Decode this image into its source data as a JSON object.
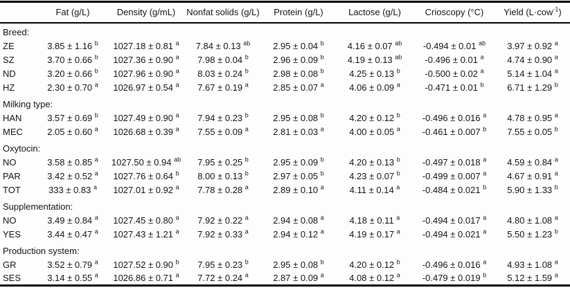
{
  "colors": {
    "background": "#fdfdfd",
    "text": "#141414",
    "rule": "#000000"
  },
  "table": {
    "headers": [
      {
        "label": "Fat (g/L)"
      },
      {
        "label": "Density (g/mL)"
      },
      {
        "label": "Nonfat solids (g/L)"
      },
      {
        "label": "Protein (g/L)"
      },
      {
        "label": "Lactose (g/L)"
      },
      {
        "label": "Crioscopy (°C)"
      },
      {
        "label": "Yield (L·cow",
        "sup": "-1",
        "after": ")"
      }
    ],
    "groups": [
      {
        "label": "Breed:",
        "rows": [
          {
            "name": "ZE",
            "cells": [
              {
                "v": "3.85 ± 1.16",
                "s": "b"
              },
              {
                "v": "1027.18 ± 0.81",
                "s": "a"
              },
              {
                "v": "7.84 ± 0.13",
                "s": "ab"
              },
              {
                "v": "2.95 ± 0.04",
                "s": "b"
              },
              {
                "v": "4.16 ± 0.07",
                "s": "ab"
              },
              {
                "v": "-0.494 ± 0.01",
                "s": "ab"
              },
              {
                "v": "3.97 ± 0.92",
                "s": "a"
              }
            ]
          },
          {
            "name": "SZ",
            "cells": [
              {
                "v": "3.70 ± 0.66",
                "s": "b"
              },
              {
                "v": "1027.36 ± 0.90",
                "s": "a"
              },
              {
                "v": "7.98 ± 0.04",
                "s": "b"
              },
              {
                "v": "2.96 ± 0.09",
                "s": "b"
              },
              {
                "v": "4.19 ± 0.13",
                "s": "ab"
              },
              {
                "v": "-0.496 ± 0.01",
                "s": "a"
              },
              {
                "v": "4.74 ± 0.90",
                "s": "a"
              }
            ]
          },
          {
            "name": "ND",
            "cells": [
              {
                "v": "3.20 ± 0.66",
                "s": "b"
              },
              {
                "v": "1027.96 ± 0.90",
                "s": "a"
              },
              {
                "v": "8.03 ± 0.24",
                "s": "b"
              },
              {
                "v": "2.98 ± 0.08",
                "s": "b"
              },
              {
                "v": "4.25 ± 0.13",
                "s": "b"
              },
              {
                "v": "-0.500 ± 0.02",
                "s": "a"
              },
              {
                "v": "5.14 ± 1.04",
                "s": "a"
              }
            ]
          },
          {
            "name": "HZ",
            "cells": [
              {
                "v": "2.30 ± 0.70",
                "s": "a"
              },
              {
                "v": "1026.97 ± 0.54",
                "s": "a"
              },
              {
                "v": "7.67 ± 0.19",
                "s": "a"
              },
              {
                "v": "2.85 ± 0.07",
                "s": "a"
              },
              {
                "v": "4.06 ± 0.09",
                "s": "a"
              },
              {
                "v": "-0.471 ± 0.01",
                "s": "b"
              },
              {
                "v": "6.71 ± 1.29",
                "s": "b"
              }
            ]
          }
        ]
      },
      {
        "label": "Milking type:",
        "rows": [
          {
            "name": "HAN",
            "cells": [
              {
                "v": "3.57 ± 0.69",
                "s": "b"
              },
              {
                "v": "1027.49 ± 0.90",
                "s": "a"
              },
              {
                "v": "7.94 ± 0.23",
                "s": "b"
              },
              {
                "v": "2.95 ± 0.08",
                "s": "b"
              },
              {
                "v": "4.20 ± 0.12",
                "s": "b"
              },
              {
                "v": "-0.496 ± 0.016",
                "s": "a"
              },
              {
                "v": "4.78 ± 0.95",
                "s": "a"
              }
            ]
          },
          {
            "name": "MEC",
            "cells": [
              {
                "v": "2.05 ± 0.60",
                "s": "a"
              },
              {
                "v": "1026.68 ± 0.39",
                "s": "a"
              },
              {
                "v": "7.55 ± 0.09",
                "s": "a"
              },
              {
                "v": "2.81 ± 0.03",
                "s": "a"
              },
              {
                "v": "4.00 ± 0.05",
                "s": "a"
              },
              {
                "v": "-0.461 ± 0.007",
                "s": "b"
              },
              {
                "v": "7.55 ± 0.05",
                "s": "b"
              }
            ]
          }
        ]
      },
      {
        "label": "Oxytocin:",
        "rows": [
          {
            "name": "NO",
            "cells": [
              {
                "v": "3.58 ± 0.85",
                "s": "a"
              },
              {
                "v": "1027.50 ± 0.94",
                "s": "ab"
              },
              {
                "v": "7.95 ± 0.25",
                "s": "b"
              },
              {
                "v": "2.95 ± 0.09",
                "s": "b"
              },
              {
                "v": "4.20 ± 0.13",
                "s": "b"
              },
              {
                "v": "-0.497 ± 0.018",
                "s": "a"
              },
              {
                "v": "4.59 ± 0.84",
                "s": "a"
              }
            ]
          },
          {
            "name": "PAR",
            "cells": [
              {
                "v": "3.42 ± 0.52",
                "s": "a"
              },
              {
                "v": "1027.76 ± 0.64",
                "s": "b"
              },
              {
                "v": "8.00 ± 0.13",
                "s": "b"
              },
              {
                "v": "2.97 ± 0.05",
                "s": "b"
              },
              {
                "v": "4.23 ± 0.07",
                "s": "b"
              },
              {
                "v": "-0.499 ± 0.007",
                "s": "a"
              },
              {
                "v": "4.67 ± 0.91",
                "s": "a"
              }
            ]
          },
          {
            "name": "TOT",
            "cells": [
              {
                "v": "333 ± 0.83",
                "s": "a"
              },
              {
                "v": "1027.01 ± 0.92",
                "s": "a"
              },
              {
                "v": "7.78 ± 0.28",
                "s": "a"
              },
              {
                "v": "2.89 ± 0.10",
                "s": "a"
              },
              {
                "v": "4.11 ± 0.14",
                "s": "a"
              },
              {
                "v": "-0.484 ± 0.021",
                "s": "b"
              },
              {
                "v": "5.90 ± 1.33",
                "s": "b"
              }
            ]
          }
        ]
      },
      {
        "label": "Supplementation:",
        "rows": [
          {
            "name": "NO",
            "cells": [
              {
                "v": "3.49 ± 0.84",
                "s": "a"
              },
              {
                "v": "1027.45 ± 0.80",
                "s": "a"
              },
              {
                "v": "7.92 ± 0.22",
                "s": "a"
              },
              {
                "v": "2.94 ± 0.08",
                "s": "a"
              },
              {
                "v": "4.18 ± 0.11",
                "s": "a"
              },
              {
                "v": "-0.494 ± 0.017",
                "s": "a"
              },
              {
                "v": "4.80 ± 1.08",
                "s": "a"
              }
            ]
          },
          {
            "name": "YES",
            "cells": [
              {
                "v": "3.44 ± 0.47",
                "s": "a"
              },
              {
                "v": "1027.43 ± 1.21",
                "s": "a"
              },
              {
                "v": "7.92 ± 0.33",
                "s": "a"
              },
              {
                "v": "2.94 ± 0.12",
                "s": "a"
              },
              {
                "v": "4.19 ± 0.17",
                "s": "a"
              },
              {
                "v": "-0.494 ± 0.021",
                "s": "a"
              },
              {
                "v": "5.50 ± 1.23",
                "s": "b"
              }
            ]
          }
        ]
      },
      {
        "label": "Production system:",
        "rows": [
          {
            "name": "GR",
            "cells": [
              {
                "v": "3.52 ± 0.79",
                "s": "a"
              },
              {
                "v": "1027.52 ± 0.90",
                "s": "b"
              },
              {
                "v": "7.95 ± 0.23",
                "s": "b"
              },
              {
                "v": "2.95 ± 0.08",
                "s": "b"
              },
              {
                "v": "4.20 ± 0.12",
                "s": "b"
              },
              {
                "v": "-0.496 ± 0.016",
                "s": "a"
              },
              {
                "v": "4.93 ± 1.08",
                "s": "a"
              }
            ]
          },
          {
            "name": "SES",
            "cells": [
              {
                "v": "3.14 ± 0.55",
                "s": "a"
              },
              {
                "v": "1026.86 ± 0.71",
                "s": "a"
              },
              {
                "v": "7.72 ± 0.24",
                "s": "a"
              },
              {
                "v": "2.87 ± 0.09",
                "s": "a"
              },
              {
                "v": "4.08 ± 0.12",
                "s": "a"
              },
              {
                "v": "-0.479 ± 0.019",
                "s": "b"
              },
              {
                "v": "5.12 ± 1.59",
                "s": "a"
              }
            ]
          }
        ]
      }
    ]
  }
}
